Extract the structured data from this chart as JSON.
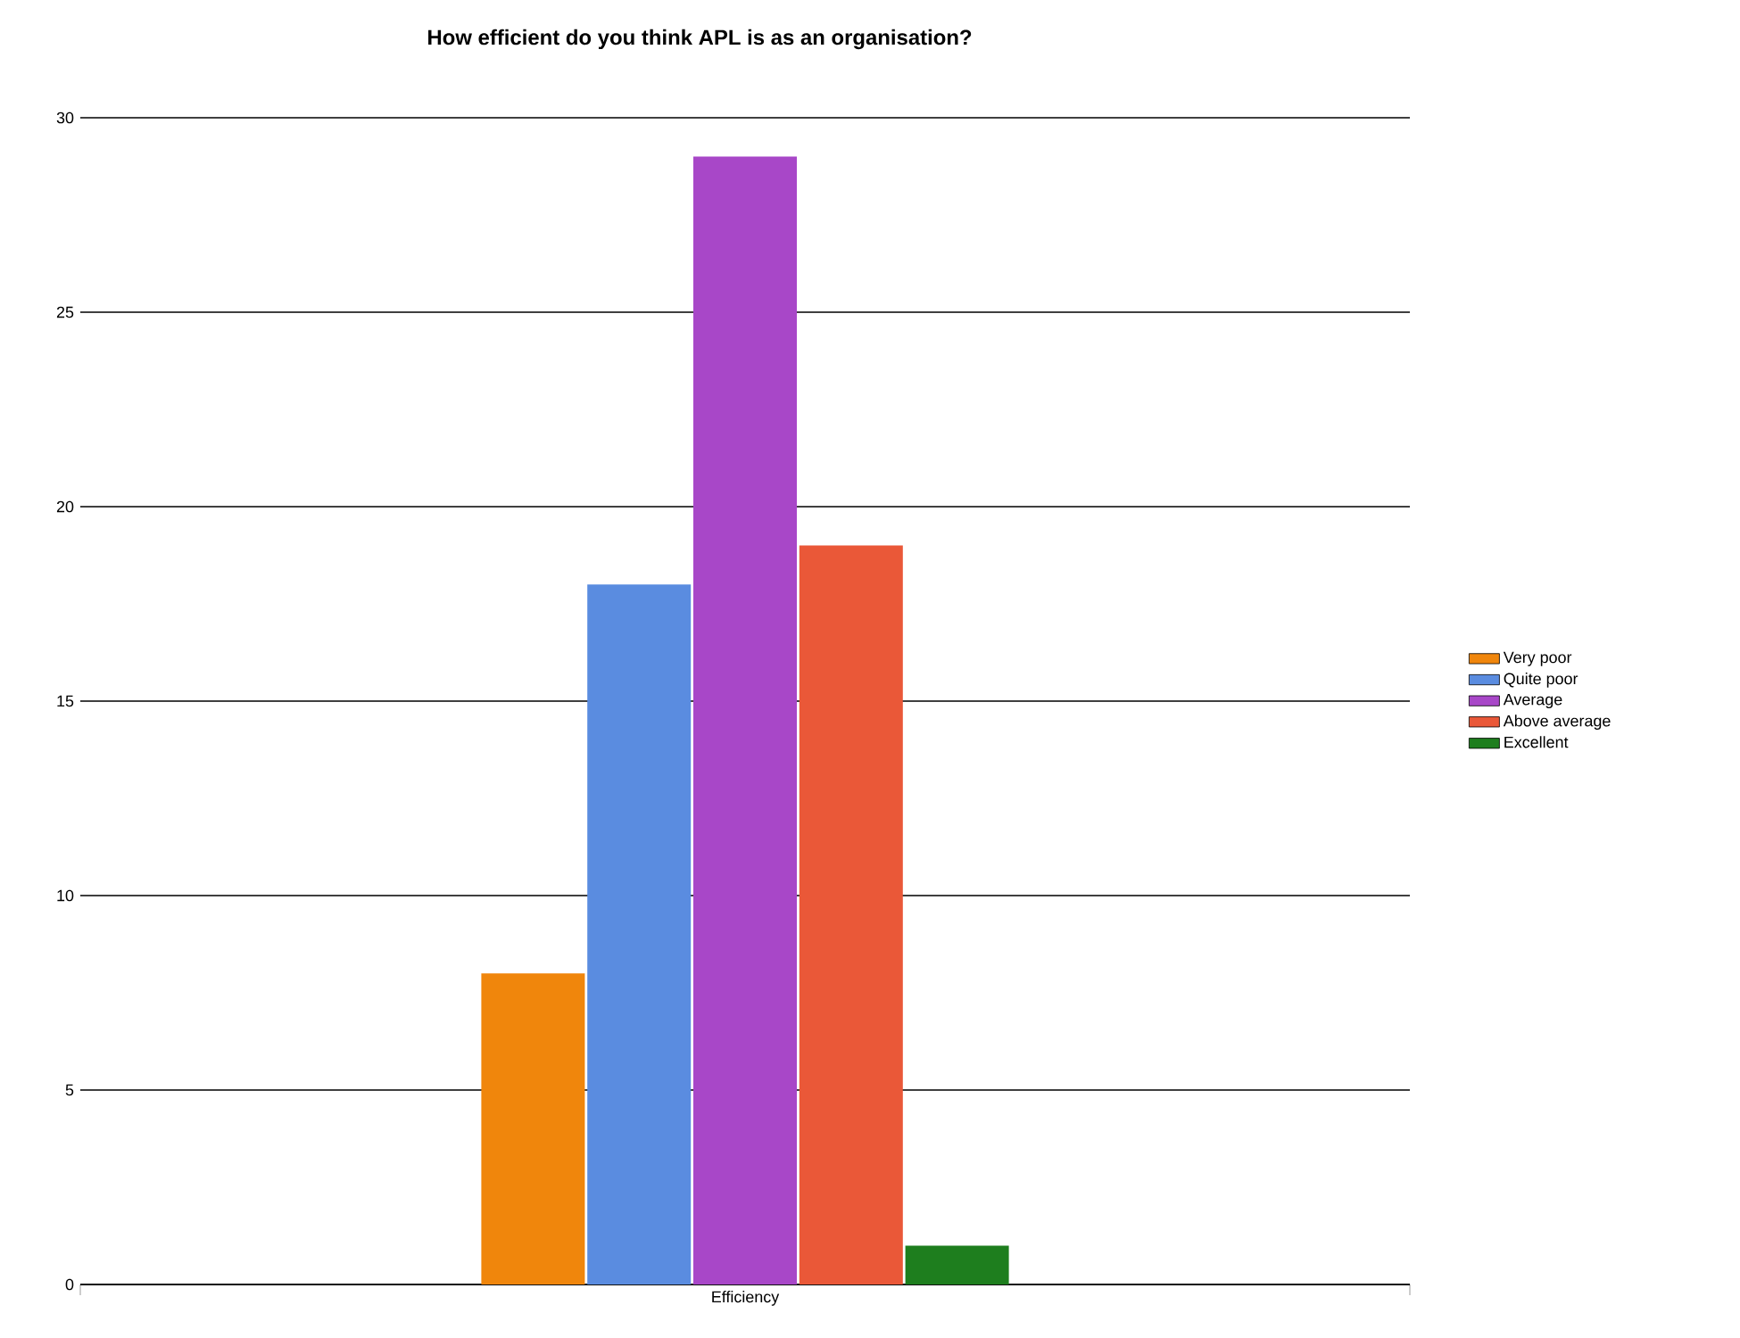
{
  "chart_data": {
    "type": "bar",
    "title": "How efficient do you think APL is as an organisation?",
    "categories": [
      "Efficiency"
    ],
    "series": [
      {
        "name": "Very poor",
        "color": "#f0860c",
        "values": [
          8
        ]
      },
      {
        "name": "Quite poor",
        "color": "#5a8ce0",
        "values": [
          18
        ]
      },
      {
        "name": "Average",
        "color": "#a847c8",
        "values": [
          29
        ]
      },
      {
        "name": "Above average",
        "color": "#ea5838",
        "values": [
          19
        ]
      },
      {
        "name": "Excellent",
        "color": "#1e7e1e",
        "values": [
          1
        ]
      }
    ],
    "ylim": [
      0,
      30
    ],
    "yticks": [
      0,
      5,
      10,
      15,
      20,
      25,
      30
    ],
    "grid": "y",
    "legend": "right"
  }
}
